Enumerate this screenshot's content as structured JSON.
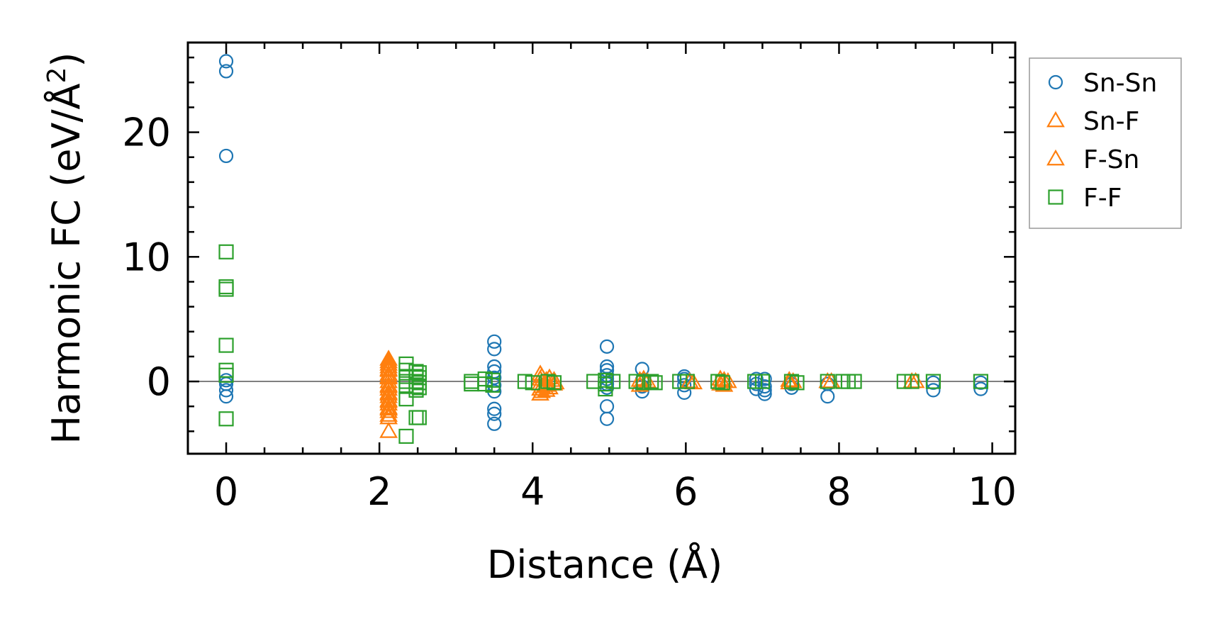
{
  "chart_data": {
    "type": "scatter",
    "title": "",
    "xlabel": "Distance (Å)",
    "ylabel_main": "Harmonic FC (eV/Å",
    "ylabel_sup": "2",
    "ylabel_close": ")",
    "xlim": [
      -0.5,
      10.3
    ],
    "ylim": [
      -5.8,
      27.2
    ],
    "xticks": [
      0,
      2,
      4,
      6,
      8,
      10
    ],
    "xtick_labels": [
      "0",
      "2",
      "4",
      "6",
      "8",
      "10"
    ],
    "xminor": [
      0.5,
      1,
      1.5,
      2.5,
      3,
      3.5,
      4.5,
      5,
      5.5,
      6.5,
      7,
      7.5,
      8.5,
      9,
      9.5
    ],
    "yticks": [
      0,
      10,
      20
    ],
    "ytick_labels": [
      "0",
      "10",
      "20"
    ],
    "yminor": [
      -4,
      -2,
      2,
      4,
      6,
      8,
      12,
      14,
      16,
      18,
      22,
      24,
      26
    ],
    "zero_line": true,
    "grid": false,
    "legend_position": "outside-right",
    "series": [
      {
        "name": "Sn-Sn",
        "marker": "circle",
        "color": "#1f77b4",
        "points": [
          [
            0,
            25.7
          ],
          [
            0,
            24.9
          ],
          [
            0,
            18.1
          ],
          [
            0,
            0.1
          ],
          [
            0,
            -0.2
          ],
          [
            0,
            -0.7
          ],
          [
            0,
            -1.2
          ],
          [
            3.5,
            3.2
          ],
          [
            3.5,
            2.6
          ],
          [
            3.5,
            1.2
          ],
          [
            3.5,
            0.8
          ],
          [
            3.5,
            0.3
          ],
          [
            3.5,
            -0.3
          ],
          [
            3.5,
            -0.8
          ],
          [
            3.5,
            -2.2
          ],
          [
            3.5,
            -2.6
          ],
          [
            3.5,
            -3.4
          ],
          [
            4.97,
            2.8
          ],
          [
            4.97,
            1.2
          ],
          [
            4.97,
            0.9
          ],
          [
            4.97,
            0.5
          ],
          [
            4.97,
            0.2
          ],
          [
            4.97,
            -0.2
          ],
          [
            4.97,
            -0.5
          ],
          [
            4.97,
            -2.0
          ],
          [
            4.97,
            -3.0
          ],
          [
            5.43,
            1.0
          ],
          [
            5.43,
            0.1
          ],
          [
            5.43,
            -0.4
          ],
          [
            5.43,
            -0.8
          ],
          [
            5.98,
            0.4
          ],
          [
            5.98,
            0.2
          ],
          [
            5.98,
            -0.3
          ],
          [
            5.98,
            -0.9
          ],
          [
            6.92,
            0.2
          ],
          [
            6.92,
            -0.2
          ],
          [
            6.92,
            -0.6
          ],
          [
            7.03,
            0.2
          ],
          [
            7.03,
            -0.4
          ],
          [
            7.03,
            -0.7
          ],
          [
            7.03,
            -1.0
          ],
          [
            7.38,
            -0.2
          ],
          [
            7.38,
            -0.5
          ],
          [
            7.85,
            -0.2
          ],
          [
            7.85,
            -1.2
          ],
          [
            9.23,
            -0.1
          ],
          [
            9.23,
            -0.7
          ],
          [
            9.85,
            -0.1
          ],
          [
            9.85,
            -0.6
          ]
        ]
      },
      {
        "name": "Sn-F",
        "marker": "triangle",
        "color": "#ff7f0e",
        "points": [
          [
            2.12,
            1.6
          ],
          [
            2.12,
            1.2
          ],
          [
            2.12,
            0.9
          ],
          [
            2.12,
            0.6
          ],
          [
            2.12,
            0.3
          ],
          [
            2.12,
            0.0
          ],
          [
            2.12,
            -0.3
          ],
          [
            2.12,
            -0.6
          ],
          [
            2.12,
            -0.9
          ],
          [
            2.12,
            -1.2
          ],
          [
            2.12,
            -1.5
          ],
          [
            2.12,
            -1.8
          ],
          [
            2.12,
            -2.1
          ],
          [
            2.12,
            -2.4
          ],
          [
            2.12,
            -2.7
          ],
          [
            4.1,
            0.6
          ],
          [
            4.1,
            0.2
          ],
          [
            4.1,
            -0.2
          ],
          [
            4.1,
            -0.6
          ],
          [
            4.1,
            -1.0
          ],
          [
            4.18,
            0.1
          ],
          [
            4.18,
            -0.3
          ],
          [
            4.18,
            -0.7
          ],
          [
            4.28,
            0.1
          ],
          [
            4.28,
            -0.2
          ],
          [
            5.4,
            0.1
          ],
          [
            5.4,
            -0.3
          ],
          [
            5.5,
            0.0
          ],
          [
            6.05,
            0.0
          ],
          [
            6.45,
            0.2
          ],
          [
            6.45,
            -0.2
          ],
          [
            6.55,
            0.0
          ],
          [
            7.35,
            0.1
          ],
          [
            7.35,
            -0.1
          ],
          [
            7.85,
            0.0
          ],
          [
            8.95,
            0.0
          ]
        ]
      },
      {
        "name": "F-Sn",
        "marker": "triangle",
        "color": "#ff7f0e",
        "points": [
          [
            2.12,
            1.8
          ],
          [
            2.12,
            1.4
          ],
          [
            2.12,
            1.0
          ],
          [
            2.12,
            0.4
          ],
          [
            2.12,
            -0.4
          ],
          [
            2.12,
            -1.0
          ],
          [
            2.12,
            -1.6
          ],
          [
            2.12,
            -2.2
          ],
          [
            2.12,
            -2.9
          ],
          [
            2.12,
            -4.0
          ],
          [
            4.12,
            0.4
          ],
          [
            4.12,
            -0.4
          ],
          [
            4.12,
            -0.8
          ],
          [
            4.22,
            0.3
          ],
          [
            4.22,
            -0.5
          ],
          [
            4.3,
            -0.1
          ],
          [
            5.45,
            0.2
          ],
          [
            6.1,
            -0.1
          ],
          [
            6.5,
            0.1
          ],
          [
            6.5,
            -0.3
          ],
          [
            7.4,
            0.0
          ],
          [
            7.9,
            0.0
          ],
          [
            9.0,
            0.0
          ]
        ]
      },
      {
        "name": "F-F",
        "marker": "square",
        "color": "#2ca02c",
        "points": [
          [
            0,
            10.4
          ],
          [
            0,
            7.6
          ],
          [
            0,
            7.4
          ],
          [
            0,
            2.9
          ],
          [
            0,
            0.9
          ],
          [
            0,
            0.5
          ],
          [
            0,
            -3.0
          ],
          [
            2.35,
            1.4
          ],
          [
            2.35,
            0.9
          ],
          [
            2.35,
            0.4
          ],
          [
            2.35,
            0.0
          ],
          [
            2.35,
            -0.4
          ],
          [
            2.35,
            -1.4
          ],
          [
            2.35,
            -4.4
          ],
          [
            2.48,
            0.8
          ],
          [
            2.48,
            0.4
          ],
          [
            2.48,
            0.0
          ],
          [
            2.48,
            -0.4
          ],
          [
            2.48,
            -0.7
          ],
          [
            2.48,
            -2.9
          ],
          [
            2.52,
            0.7
          ],
          [
            2.52,
            0.3
          ],
          [
            2.52,
            -0.1
          ],
          [
            2.52,
            -0.5
          ],
          [
            2.52,
            -2.9
          ],
          [
            3.2,
            0.0
          ],
          [
            3.2,
            -0.2
          ],
          [
            3.38,
            0.2
          ],
          [
            3.38,
            -0.2
          ],
          [
            3.48,
            0.1
          ],
          [
            3.48,
            -0.3
          ],
          [
            3.9,
            0.0
          ],
          [
            4.0,
            -0.1
          ],
          [
            4.2,
            0.0
          ],
          [
            4.28,
            -0.1
          ],
          [
            4.8,
            0.0
          ],
          [
            4.95,
            0.1
          ],
          [
            4.95,
            -0.2
          ],
          [
            4.95,
            -0.6
          ],
          [
            5.05,
            0.0
          ],
          [
            5.35,
            0.0
          ],
          [
            5.45,
            -0.1
          ],
          [
            5.55,
            0.0
          ],
          [
            5.6,
            -0.1
          ],
          [
            5.92,
            0.0
          ],
          [
            6.02,
            0.0
          ],
          [
            6.42,
            0.0
          ],
          [
            6.48,
            -0.1
          ],
          [
            6.9,
            0.0
          ],
          [
            7.0,
            0.0
          ],
          [
            7.38,
            0.0
          ],
          [
            7.45,
            -0.1
          ],
          [
            7.85,
            0.0
          ],
          [
            8.05,
            0.0
          ],
          [
            8.12,
            0.0
          ],
          [
            8.2,
            0.0
          ],
          [
            8.85,
            0.0
          ],
          [
            8.95,
            0.0
          ],
          [
            9.23,
            0.0
          ],
          [
            9.85,
            0.0
          ]
        ]
      }
    ]
  }
}
